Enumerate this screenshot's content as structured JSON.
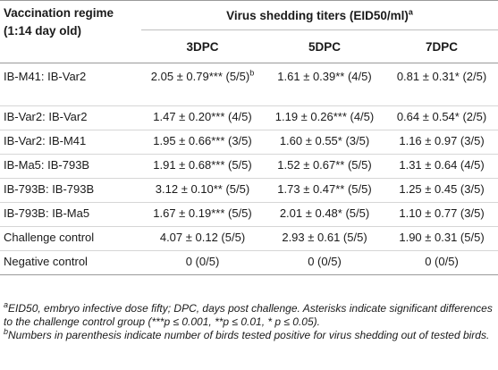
{
  "table": {
    "stub_header": "Vaccination regime (1:14 day old)",
    "group_header": "Virus shedding titers (EID50/ml)",
    "group_header_sup": "a",
    "columns": [
      "3DPC",
      "5DPC",
      "7DPC"
    ],
    "rows": [
      {
        "label": "IB-M41: IB-Var2",
        "cells": [
          "2.05 ± 0.79*** (5/5)",
          "1.61 ± 0.39** (4/5)",
          "0.81 ± 0.31* (2/5)"
        ],
        "sup": "b"
      },
      {
        "label": "IB-Var2: IB-Var2",
        "cells": [
          "1.47 ± 0.20*** (4/5)",
          "1.19 ± 0.26*** (4/5)",
          "0.64 ± 0.54* (2/5)"
        ]
      },
      {
        "label": "IB-Var2: IB-M41",
        "cells": [
          "1.95 ± 0.66*** (3/5)",
          "1.60 ± 0.55* (3/5)",
          "1.16 ± 0.97 (3/5)"
        ]
      },
      {
        "label": "IB-Ma5: IB-793B",
        "cells": [
          "1.91 ± 0.68*** (5/5)",
          "1.52 ± 0.67** (5/5)",
          "1.31 ± 0.64 (4/5)"
        ]
      },
      {
        "label": "IB-793B: IB-793B",
        "cells": [
          "3.12 ± 0.10** (5/5)",
          "1.73 ± 0.47** (5/5)",
          "1.25 ± 0.45 (3/5)"
        ]
      },
      {
        "label": "IB-793B: IB-Ma5",
        "cells": [
          "1.67 ± 0.19*** (5/5)",
          "2.01 ± 0.48* (5/5)",
          "1.10 ± 0.77 (3/5)"
        ]
      },
      {
        "label": "Challenge control",
        "cells": [
          "4.07 ± 0.12 (5/5)",
          "2.93 ± 0.61 (5/5)",
          "1.90 ± 0.31 (5/5)"
        ]
      },
      {
        "label": "Negative control",
        "cells": [
          "0 (0/5)",
          "0 (0/5)",
          "0 (0/5)"
        ]
      }
    ]
  },
  "footnotes": {
    "a_mark": "a",
    "a_text": "EID50, embryo infective dose fifty; DPC, days post challenge. Asterisks indicate significant differences to the challenge control group (***p ≤ 0.001, **p ≤ 0.01, * p ≤ 0.05).",
    "b_mark": "b",
    "b_text": "Numbers in parenthesis indicate number of birds tested positive for virus shedding out of tested birds."
  }
}
